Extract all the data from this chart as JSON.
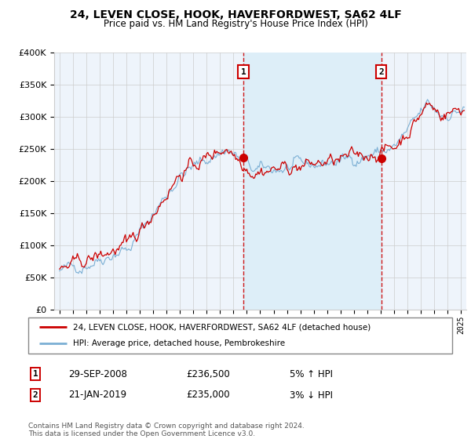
{
  "title": "24, LEVEN CLOSE, HOOK, HAVERFORDWEST, SA62 4LF",
  "subtitle": "Price paid vs. HM Land Registry's House Price Index (HPI)",
  "legend_line1": "24, LEVEN CLOSE, HOOK, HAVERFORDWEST, SA62 4LF (detached house)",
  "legend_line2": "HPI: Average price, detached house, Pembrokeshire",
  "footnote": "Contains HM Land Registry data © Crown copyright and database right 2024.\nThis data is licensed under the Open Government Licence v3.0.",
  "sale1_date": "29-SEP-2008",
  "sale1_price": "£236,500",
  "sale1_hpi": "5% ↑ HPI",
  "sale2_date": "21-JAN-2019",
  "sale2_price": "£235,000",
  "sale2_hpi": "3% ↓ HPI",
  "hpi_line_color": "#7bafd4",
  "price_color": "#cc0000",
  "shade_color": "#ddeef8",
  "background_color": "#eef4fb",
  "ylim": [
    0,
    400000
  ],
  "yticks": [
    0,
    50000,
    100000,
    150000,
    200000,
    250000,
    300000,
    350000,
    400000
  ],
  "sale1_x": 2008.75,
  "sale1_y": 236500,
  "sale2_x": 2019.05,
  "sale2_y": 235000,
  "xmin": 1995,
  "xmax": 2025
}
